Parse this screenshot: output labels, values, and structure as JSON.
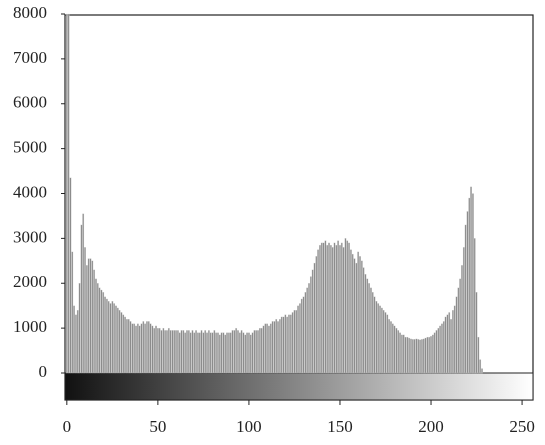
{
  "chart_data": {
    "type": "bar",
    "color": "#8c8c8c",
    "x": [
      0,
      1,
      2,
      3,
      4,
      5,
      6,
      7,
      8,
      9,
      10,
      11,
      12,
      13,
      14,
      15,
      16,
      17,
      18,
      19,
      20,
      21,
      22,
      23,
      24,
      25,
      26,
      27,
      28,
      29,
      30,
      31,
      32,
      33,
      34,
      35,
      36,
      37,
      38,
      39,
      40,
      41,
      42,
      43,
      44,
      45,
      46,
      47,
      48,
      49,
      50,
      51,
      52,
      53,
      54,
      55,
      56,
      57,
      58,
      59,
      60,
      61,
      62,
      63,
      64,
      65,
      66,
      67,
      68,
      69,
      70,
      71,
      72,
      73,
      74,
      75,
      76,
      77,
      78,
      79,
      80,
      81,
      82,
      83,
      84,
      85,
      86,
      87,
      88,
      89,
      90,
      91,
      92,
      93,
      94,
      95,
      96,
      97,
      98,
      99,
      100,
      101,
      102,
      103,
      104,
      105,
      106,
      107,
      108,
      109,
      110,
      111,
      112,
      113,
      114,
      115,
      116,
      117,
      118,
      119,
      120,
      121,
      122,
      123,
      124,
      125,
      126,
      127,
      128,
      129,
      130,
      131,
      132,
      133,
      134,
      135,
      136,
      137,
      138,
      139,
      140,
      141,
      142,
      143,
      144,
      145,
      146,
      147,
      148,
      149,
      150,
      151,
      152,
      153,
      154,
      155,
      156,
      157,
      158,
      159,
      160,
      161,
      162,
      163,
      164,
      165,
      166,
      167,
      168,
      169,
      170,
      171,
      172,
      173,
      174,
      175,
      176,
      177,
      178,
      179,
      180,
      181,
      182,
      183,
      184,
      185,
      186,
      187,
      188,
      189,
      190,
      191,
      192,
      193,
      194,
      195,
      196,
      197,
      198,
      199,
      200,
      201,
      202,
      203,
      204,
      205,
      206,
      207,
      208,
      209,
      210,
      211,
      212,
      213,
      214,
      215,
      216,
      217,
      218,
      219,
      220,
      221,
      222,
      223,
      224,
      225,
      226,
      227,
      228,
      229,
      230,
      231,
      232,
      233,
      234,
      235,
      236,
      237,
      238,
      239,
      240,
      241,
      242,
      243,
      244,
      245,
      246,
      247,
      248,
      249,
      250,
      251,
      252,
      253,
      254,
      255
    ],
    "values": [
      8000,
      8000,
      4350,
      2700,
      1500,
      1300,
      1400,
      2000,
      3300,
      3550,
      2800,
      2400,
      2550,
      2550,
      2500,
      2300,
      2100,
      2000,
      1900,
      1850,
      1800,
      1700,
      1650,
      1600,
      1550,
      1600,
      1550,
      1500,
      1450,
      1400,
      1350,
      1300,
      1250,
      1200,
      1200,
      1150,
      1100,
      1100,
      1050,
      1100,
      1050,
      1100,
      1150,
      1100,
      1150,
      1150,
      1100,
      1050,
      1000,
      1050,
      1000,
      1000,
      950,
      1000,
      950,
      950,
      1000,
      950,
      950,
      950,
      950,
      950,
      900,
      950,
      950,
      900,
      950,
      950,
      900,
      950,
      900,
      950,
      900,
      900,
      950,
      900,
      950,
      900,
      950,
      900,
      900,
      950,
      900,
      900,
      850,
      900,
      900,
      850,
      900,
      900,
      900,
      950,
      950,
      1000,
      950,
      900,
      950,
      900,
      850,
      900,
      900,
      850,
      900,
      950,
      950,
      950,
      1000,
      1000,
      1050,
      1100,
      1100,
      1050,
      1100,
      1150,
      1150,
      1200,
      1150,
      1200,
      1250,
      1250,
      1300,
      1250,
      1300,
      1300,
      1350,
      1400,
      1400,
      1500,
      1550,
      1650,
      1700,
      1800,
      1900,
      2000,
      2150,
      2300,
      2450,
      2600,
      2750,
      2850,
      2900,
      2900,
      2950,
      2850,
      2900,
      2850,
      2800,
      2900,
      2850,
      2950,
      2850,
      2900,
      2800,
      3000,
      2950,
      2900,
      2750,
      2650,
      2550,
      2450,
      2700,
      2600,
      2500,
      2350,
      2200,
      2100,
      2000,
      1900,
      1800,
      1700,
      1600,
      1550,
      1500,
      1450,
      1400,
      1350,
      1300,
      1200,
      1150,
      1100,
      1050,
      1000,
      950,
      900,
      850,
      850,
      800,
      800,
      780,
      760,
      750,
      750,
      760,
      750,
      740,
      750,
      760,
      780,
      800,
      800,
      820,
      850,
      900,
      950,
      1000,
      1050,
      1100,
      1150,
      1250,
      1300,
      1350,
      1200,
      1400,
      1500,
      1700,
      1900,
      2100,
      2400,
      2800,
      3300,
      3600,
      3900,
      4150,
      4000,
      3000,
      1800,
      800,
      300,
      100,
      0,
      0,
      0,
      0,
      0,
      0,
      0,
      0,
      0,
      0,
      0,
      0,
      0,
      0,
      0,
      0,
      0,
      0,
      0,
      0,
      0,
      0,
      0,
      0,
      0,
      0,
      0
    ],
    "xlim": [
      -1,
      256
    ],
    "ylim": [
      0,
      8000
    ],
    "xticks": [
      0,
      50,
      100,
      150,
      200,
      250
    ],
    "yticks": [
      0,
      1000,
      2000,
      3000,
      4000,
      5000,
      6000,
      7000,
      8000
    ]
  }
}
